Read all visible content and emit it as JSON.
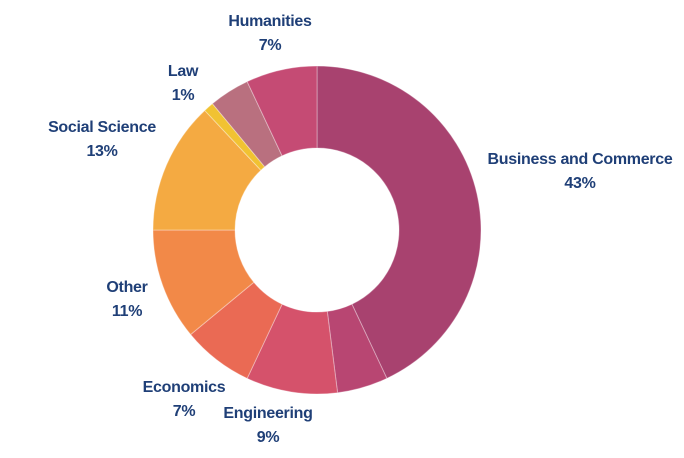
{
  "chart_data": {
    "type": "pie",
    "donut": true,
    "title": "",
    "slices": [
      {
        "label": "Business and Commerce",
        "value": 43,
        "value_label": "43%",
        "color": "#a8426f",
        "labeled": true
      },
      {
        "label": "",
        "value": 5,
        "value_label": "",
        "color": "#b84672",
        "labeled": false
      },
      {
        "label": "Engineering",
        "value": 9,
        "value_label": "9%",
        "color": "#d5526b",
        "labeled": true
      },
      {
        "label": "Economics",
        "value": 7,
        "value_label": "7%",
        "color": "#ea6a54",
        "labeled": true
      },
      {
        "label": "Other",
        "value": 11,
        "value_label": "11%",
        "color": "#f28948",
        "labeled": true
      },
      {
        "label": "Social Science",
        "value": 13,
        "value_label": "13%",
        "color": "#f4aa42",
        "labeled": true
      },
      {
        "label": "Law",
        "value": 1,
        "value_label": "1%",
        "color": "#f1c232",
        "labeled": true
      },
      {
        "label": "",
        "value": 4,
        "value_label": "",
        "color": "#b9707f",
        "labeled": false
      },
      {
        "label": "Humanities",
        "value": 7,
        "value_label": "7%",
        "color": "#c54b74",
        "labeled": true
      }
    ],
    "label_color": "#1f3f77"
  }
}
